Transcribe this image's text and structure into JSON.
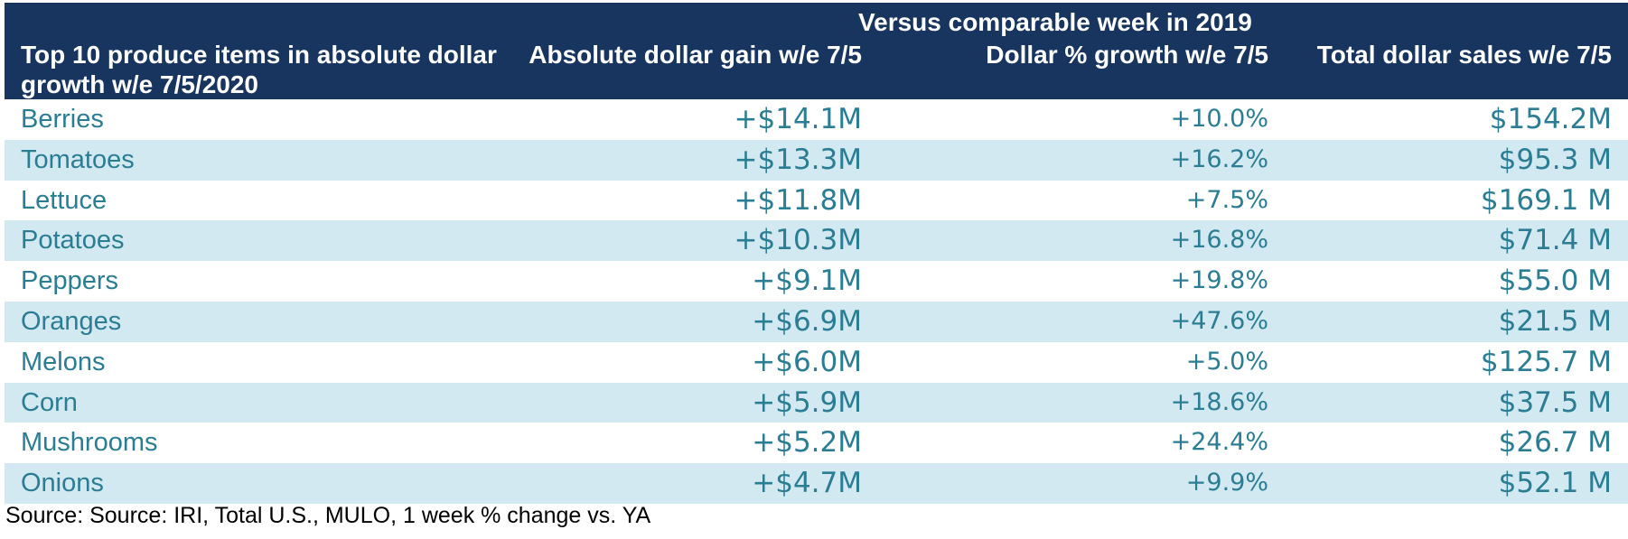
{
  "chart_data": {
    "type": "table",
    "header": {
      "group_title": "Versus comparable week in 2019",
      "item_col": "Top 10 produce items in absolute dollar growth w/e 7/5/2020",
      "abs_gain_col": "Absolute dollar gain w/e 7/5",
      "pct_growth_col": "Dollar % growth w/e 7/5",
      "total_sales_col": "Total dollar sales w/e 7/5"
    },
    "rows": [
      {
        "item": "Berries",
        "abs_gain": "+$14.1M",
        "pct_growth": "+10.0%",
        "total_sales": "$154.2M"
      },
      {
        "item": "Tomatoes",
        "abs_gain": "+$13.3M",
        "pct_growth": "+16.2%",
        "total_sales": "$95.3 M"
      },
      {
        "item": "Lettuce",
        "abs_gain": "+$11.8M",
        "pct_growth": "+7.5%",
        "total_sales": "$169.1 M"
      },
      {
        "item": "Potatoes",
        "abs_gain": "+$10.3M",
        "pct_growth": "+16.8%",
        "total_sales": "$71.4 M"
      },
      {
        "item": "Peppers",
        "abs_gain": "+$9.1M",
        "pct_growth": "+19.8%",
        "total_sales": "$55.0 M"
      },
      {
        "item": "Oranges",
        "abs_gain": "+$6.9M",
        "pct_growth": "+47.6%",
        "total_sales": "$21.5 M"
      },
      {
        "item": "Melons",
        "abs_gain": "+$6.0M",
        "pct_growth": "+5.0%",
        "total_sales": "$125.7 M"
      },
      {
        "item": "Corn",
        "abs_gain": "+$5.9M",
        "pct_growth": "+18.6%",
        "total_sales": "$37.5 M"
      },
      {
        "item": "Mushrooms",
        "abs_gain": "+$5.2M",
        "pct_growth": "+24.4%",
        "total_sales": "$26.7 M"
      },
      {
        "item": "Onions",
        "abs_gain": "+$4.7M",
        "pct_growth": "+9.9%",
        "total_sales": "$52.1 M"
      }
    ],
    "source": "Source: Source: IRI, Total U.S., MULO, 1 week % change vs. YA"
  },
  "colors": {
    "header_bg": "#17355e",
    "header_text": "#ffffff",
    "row_text": "#2a7d93",
    "row_band": "#d2e9f1",
    "row_plain": "#ffffff"
  }
}
